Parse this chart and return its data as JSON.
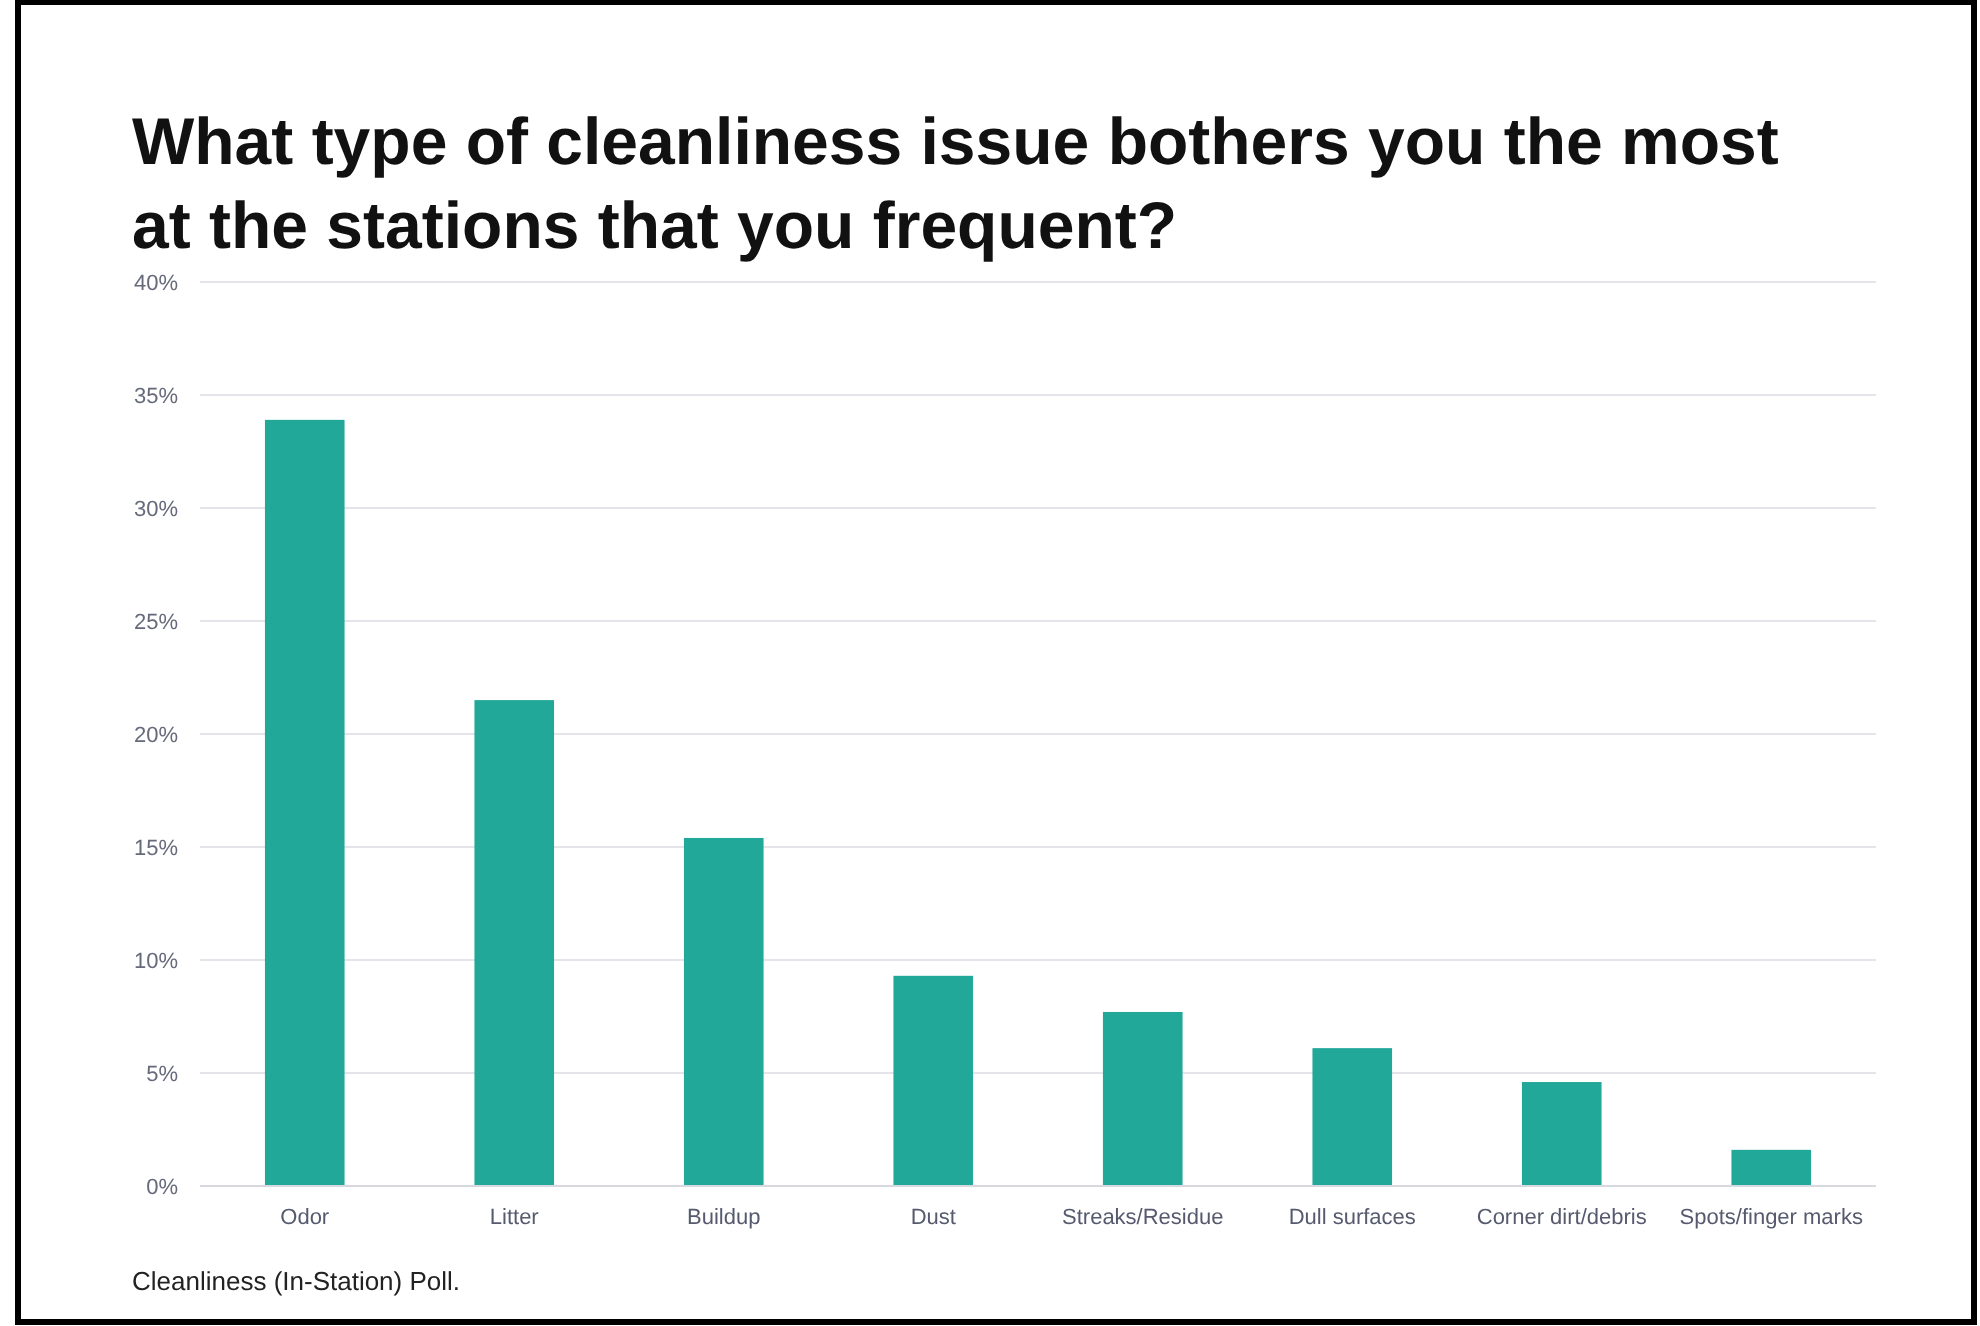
{
  "chart_data": {
    "type": "bar",
    "title": "What type of cleanliness issue bothers you the most at the stations that you frequent?",
    "categories": [
      "Odor",
      "Litter",
      "Buildup",
      "Dust",
      "Streaks/Residue",
      "Dull surfaces",
      "Corner dirt/debris",
      "Spots/finger marks"
    ],
    "values": [
      33.9,
      21.5,
      15.4,
      9.3,
      7.7,
      6.1,
      4.6,
      1.6
    ],
    "color": "#22a898",
    "ylim": [
      0,
      40
    ],
    "yticks": [
      {
        "value": 0,
        "label": "0%"
      },
      {
        "value": 5,
        "label": "5%"
      },
      {
        "value": 10,
        "label": "10%"
      },
      {
        "value": 15,
        "label": "15%"
      },
      {
        "value": 20,
        "label": "20%"
      },
      {
        "value": 25,
        "label": "25%"
      },
      {
        "value": 30,
        "label": "30%"
      },
      {
        "value": 35,
        "label": "35%"
      },
      {
        "value": 40,
        "label": "40%"
      }
    ],
    "grid": "y",
    "annotations": [
      "Cleanliness (In-Station) Poll."
    ]
  }
}
